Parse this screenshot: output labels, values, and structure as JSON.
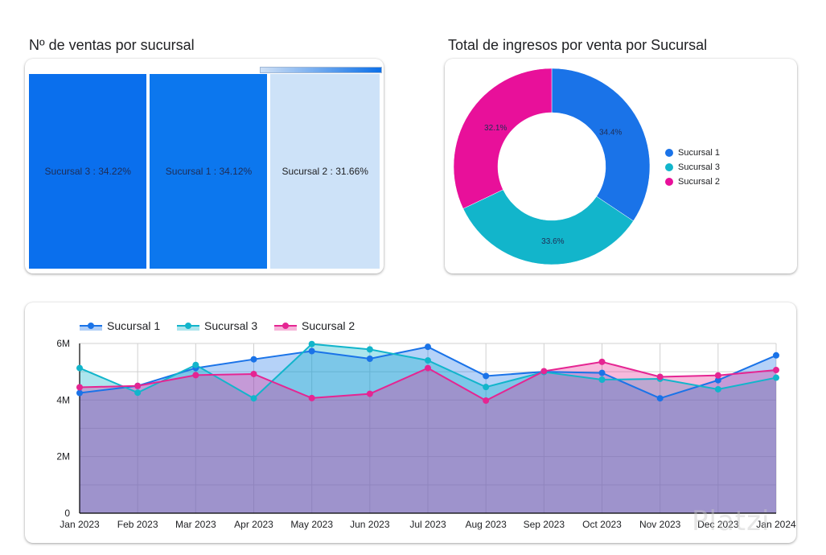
{
  "chart_data": [
    {
      "type": "treemap",
      "title": "Nº de ventas por sucursal",
      "items": [
        {
          "name": "Sucursal 3",
          "percent": 34.22,
          "label": "Sucursal 3 : 34.22%",
          "color": "#0a6fed"
        },
        {
          "name": "Sucursal 1",
          "percent": 34.12,
          "label": "Sucursal 1 : 34.12%",
          "color": "#0c77ee"
        },
        {
          "name": "Sucursal 2",
          "percent": 31.66,
          "label": "Sucursal 2 : 31.66%",
          "color": "#cde2f8"
        }
      ],
      "color_scale": {
        "from": "#cfe0f5",
        "to": "#0b6fe8"
      }
    },
    {
      "type": "pie",
      "donut": true,
      "title": "Total de ingresos por venta por Sucursal",
      "slices": [
        {
          "name": "Sucursal 1",
          "percent": 34.4,
          "label": "34.4%",
          "color": "#1a73e8"
        },
        {
          "name": "Sucursal 3",
          "percent": 33.6,
          "label": "33.6%",
          "color": "#12b5cb"
        },
        {
          "name": "Sucursal 2",
          "percent": 32.1,
          "label": "32.1%",
          "color": "#e8109a"
        }
      ],
      "legend": {
        "position": "right",
        "entries": [
          "Sucursal 1",
          "Sucursal 3",
          "Sucursal 2"
        ]
      }
    },
    {
      "type": "area",
      "title": "",
      "x": [
        "Jan 2023",
        "Feb 2023",
        "Mar 2023",
        "Apr 2023",
        "May 2023",
        "Jun 2023",
        "Jul 2023",
        "Aug 2023",
        "Sep 2023",
        "Oct 2023",
        "Nov 2023",
        "Dec 2023",
        "Jan 2024"
      ],
      "series": [
        {
          "name": "Sucursal 1",
          "color": "#1a73e8",
          "fill": "#1a73e8",
          "values": [
            4250000,
            4500000,
            5130000,
            5440000,
            5730000,
            5460000,
            5880000,
            4850000,
            5000000,
            4960000,
            4060000,
            4700000,
            5580000
          ]
        },
        {
          "name": "Sucursal 3",
          "color": "#12b5cb",
          "fill": "#12b5cb",
          "values": [
            5130000,
            4260000,
            5240000,
            4060000,
            5980000,
            5790000,
            5400000,
            4460000,
            4990000,
            4720000,
            4750000,
            4380000,
            4790000
          ]
        },
        {
          "name": "Sucursal 2",
          "color": "#e52592",
          "fill": "#e52592",
          "values": [
            4450000,
            4500000,
            4880000,
            4920000,
            4070000,
            4220000,
            5130000,
            3980000,
            5020000,
            5350000,
            4820000,
            4870000,
            5060000
          ]
        }
      ],
      "ylim": [
        0,
        6000000
      ],
      "yticks": [
        {
          "value": 0,
          "label": "0"
        },
        {
          "value": 2000000,
          "label": "2M"
        },
        {
          "value": 4000000,
          "label": "4M"
        },
        {
          "value": 6000000,
          "label": "6M"
        }
      ],
      "grid": true,
      "legend": {
        "position": "top-left",
        "entries": [
          "Sucursal 1",
          "Sucursal 3",
          "Sucursal 2"
        ]
      }
    }
  ],
  "watermark": "Platzi"
}
